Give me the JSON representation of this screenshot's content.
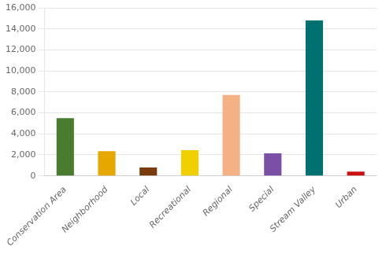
{
  "chart_data": {
    "type": "bar",
    "categories": [
      "Conservation Area",
      "Neighborhood",
      "Local",
      "Recreational",
      "Regional",
      "Special",
      "Stream Valley",
      "Urban"
    ],
    "values": [
      5500,
      2350,
      800,
      2450,
      7700,
      2150,
      14800,
      400
    ],
    "colors": [
      "#4a7c2f",
      "#e6a800",
      "#7a3b0a",
      "#f0d000",
      "#f4b183",
      "#7b4fa6",
      "#007070",
      "#cc1111"
    ],
    "ylim": [
      0,
      16000
    ],
    "yticks": [
      0,
      {
        "value": 2000,
        "label": "2,000"
      },
      {
        "value": 4000,
        "label": "4,000"
      },
      {
        "value": 6000,
        "label": "6,000"
      },
      {
        "value": 8000,
        "label": "8,000"
      },
      {
        "value": 10000,
        "label": "10,000"
      },
      {
        "value": 12000,
        "label": "12,000"
      },
      {
        "value": 14000,
        "label": "14,000"
      },
      {
        "value": 16000,
        "label": "16,000"
      }
    ],
    "grid": true
  }
}
